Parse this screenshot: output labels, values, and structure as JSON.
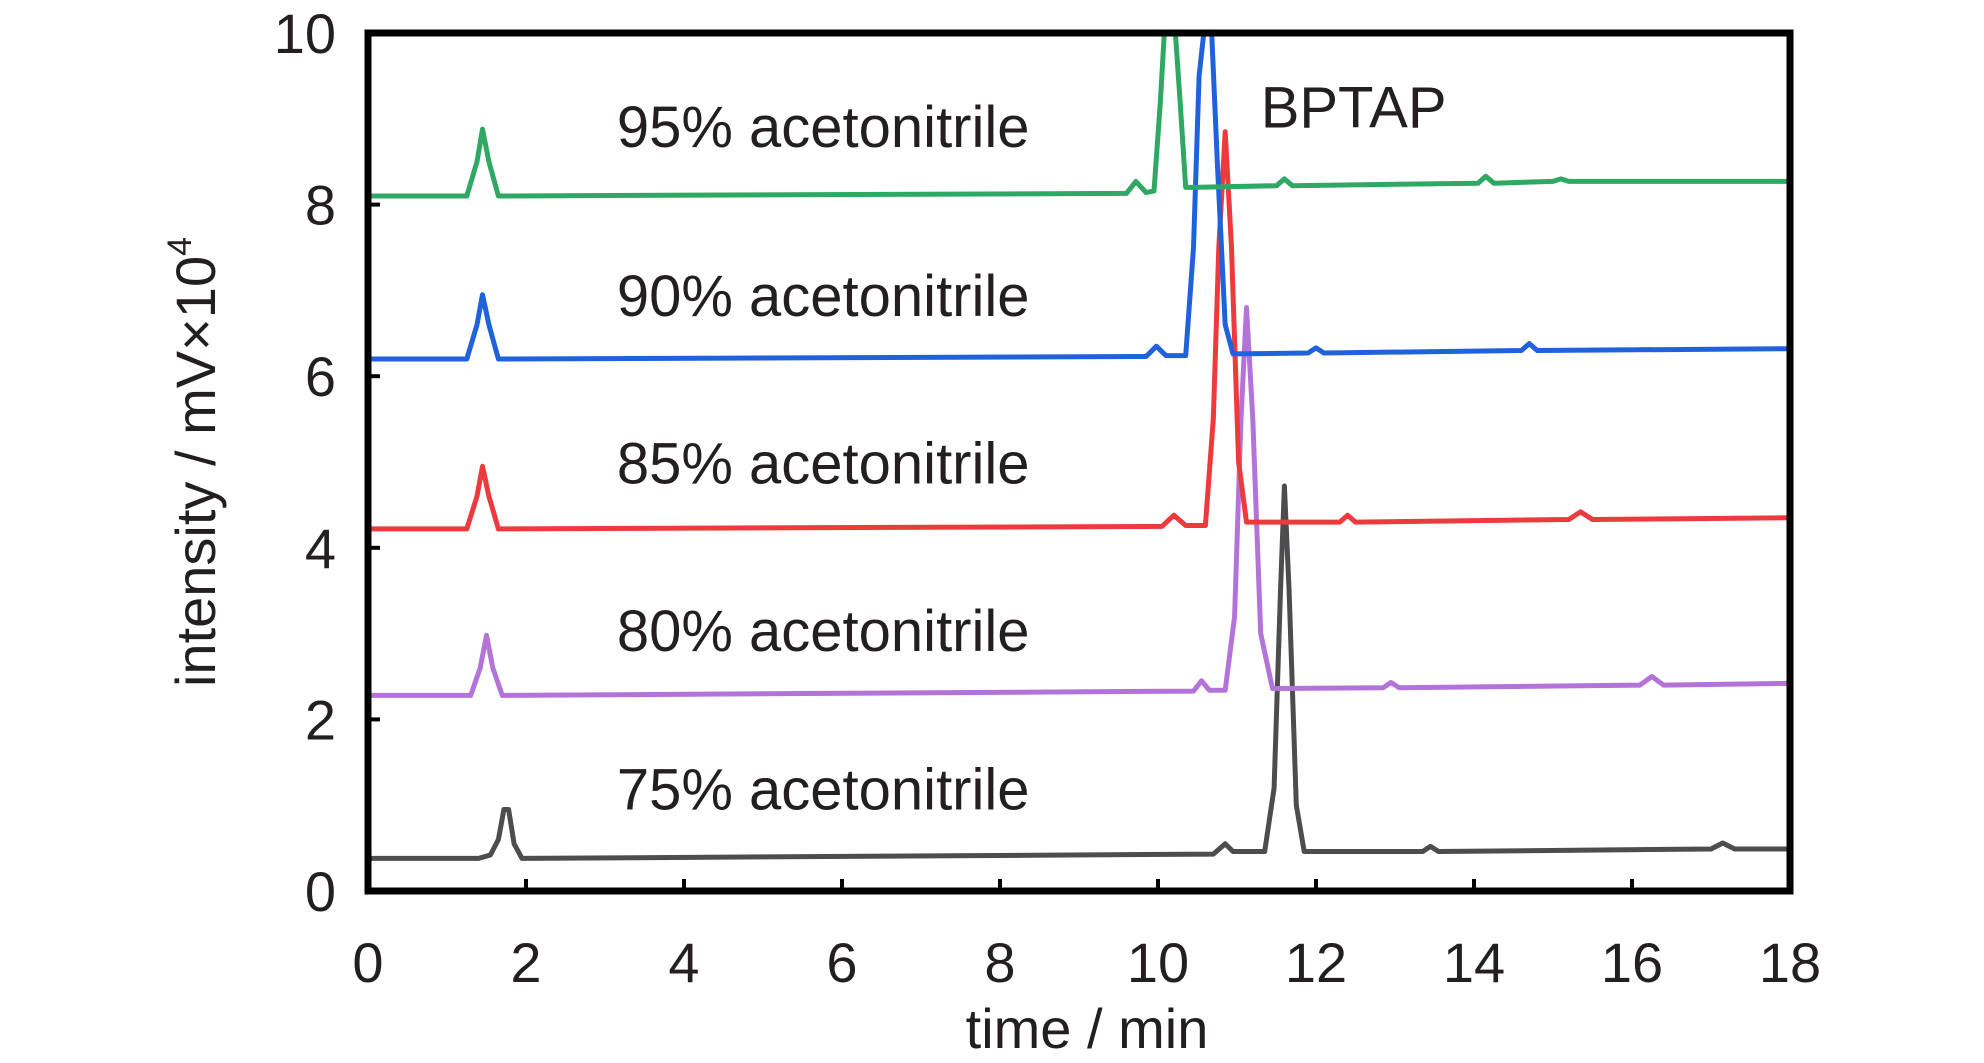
{
  "chart_data": {
    "type": "line",
    "title": "",
    "xlabel": "time / min",
    "ylabel_prefix": "intensity / mV×10",
    "ylabel_exponent": "4",
    "xlim": [
      0,
      18
    ],
    "ylim": [
      0,
      10
    ],
    "xticks": [
      0,
      2,
      4,
      6,
      8,
      10,
      12,
      14,
      16,
      18
    ],
    "yticks": [
      0,
      2,
      4,
      6,
      8,
      10
    ],
    "grid": false,
    "legend": "none",
    "annotations": [
      {
        "name": "bptap",
        "text": "BPTAP",
        "x": 11.3,
        "y": 8.9
      }
    ],
    "series": [
      {
        "name": "75% acetonitrile",
        "label_x": 3.15,
        "label_y": 0.95,
        "color": "#4d4d4f",
        "points": [
          [
            0,
            0.38
          ],
          [
            1.4,
            0.38
          ],
          [
            1.55,
            0.42
          ],
          [
            1.65,
            0.6
          ],
          [
            1.72,
            0.95
          ],
          [
            1.78,
            0.95
          ],
          [
            1.85,
            0.55
          ],
          [
            1.95,
            0.38
          ],
          [
            10.7,
            0.43
          ],
          [
            10.85,
            0.55
          ],
          [
            10.95,
            0.46
          ],
          [
            11.35,
            0.46
          ],
          [
            11.47,
            1.2
          ],
          [
            11.55,
            3.5
          ],
          [
            11.6,
            4.72
          ],
          [
            11.66,
            3.5
          ],
          [
            11.75,
            1.0
          ],
          [
            11.85,
            0.46
          ],
          [
            13.35,
            0.46
          ],
          [
            13.45,
            0.52
          ],
          [
            13.55,
            0.46
          ],
          [
            17.0,
            0.49
          ],
          [
            17.15,
            0.56
          ],
          [
            17.3,
            0.49
          ],
          [
            18,
            0.49
          ]
        ]
      },
      {
        "name": "80% acetonitrile",
        "label_x": 3.15,
        "label_y": 2.8,
        "color": "#b473d9",
        "points": [
          [
            0,
            2.28
          ],
          [
            1.3,
            2.28
          ],
          [
            1.42,
            2.6
          ],
          [
            1.5,
            2.98
          ],
          [
            1.58,
            2.6
          ],
          [
            1.7,
            2.28
          ],
          [
            10.45,
            2.33
          ],
          [
            10.55,
            2.45
          ],
          [
            10.65,
            2.34
          ],
          [
            10.85,
            2.34
          ],
          [
            10.97,
            3.2
          ],
          [
            11.05,
            5.5
          ],
          [
            11.12,
            6.8
          ],
          [
            11.2,
            5.5
          ],
          [
            11.3,
            3.0
          ],
          [
            11.45,
            2.36
          ],
          [
            12.85,
            2.37
          ],
          [
            12.95,
            2.43
          ],
          [
            13.05,
            2.37
          ],
          [
            16.1,
            2.4
          ],
          [
            16.25,
            2.5
          ],
          [
            16.4,
            2.4
          ],
          [
            18,
            2.42
          ]
        ]
      },
      {
        "name": "85% acetonitrile",
        "label_x": 3.15,
        "label_y": 4.75,
        "color": "#ed3b3d",
        "points": [
          [
            0,
            4.22
          ],
          [
            1.25,
            4.22
          ],
          [
            1.38,
            4.6
          ],
          [
            1.45,
            4.95
          ],
          [
            1.53,
            4.6
          ],
          [
            1.65,
            4.22
          ],
          [
            10.05,
            4.25
          ],
          [
            10.2,
            4.38
          ],
          [
            10.35,
            4.26
          ],
          [
            10.6,
            4.26
          ],
          [
            10.7,
            5.5
          ],
          [
            10.77,
            7.5
          ],
          [
            10.85,
            8.85
          ],
          [
            10.93,
            7.5
          ],
          [
            11.02,
            5.0
          ],
          [
            11.12,
            4.3
          ],
          [
            12.3,
            4.3
          ],
          [
            12.4,
            4.38
          ],
          [
            12.5,
            4.3
          ],
          [
            15.2,
            4.33
          ],
          [
            15.35,
            4.42
          ],
          [
            15.5,
            4.33
          ],
          [
            18,
            4.35
          ]
        ]
      },
      {
        "name": "90% acetonitrile",
        "label_x": 3.15,
        "label_y": 6.7,
        "color": "#2062db",
        "points": [
          [
            0,
            6.2
          ],
          [
            1.25,
            6.2
          ],
          [
            1.38,
            6.6
          ],
          [
            1.45,
            6.95
          ],
          [
            1.53,
            6.6
          ],
          [
            1.65,
            6.2
          ],
          [
            9.85,
            6.23
          ],
          [
            9.98,
            6.35
          ],
          [
            10.1,
            6.24
          ],
          [
            10.35,
            6.24
          ],
          [
            10.45,
            7.5
          ],
          [
            10.52,
            9.5
          ],
          [
            10.58,
            10
          ],
          [
            10.68,
            10
          ],
          [
            10.75,
            8.5
          ],
          [
            10.85,
            6.6
          ],
          [
            10.95,
            6.26
          ],
          [
            11.9,
            6.27
          ],
          [
            12.0,
            6.33
          ],
          [
            12.1,
            6.27
          ],
          [
            14.6,
            6.3
          ],
          [
            14.7,
            6.38
          ],
          [
            14.8,
            6.3
          ],
          [
            18,
            6.32
          ]
        ]
      },
      {
        "name": "95% acetonitrile",
        "label_x": 3.15,
        "label_y": 8.67,
        "color": "#2fa864",
        "points": [
          [
            0,
            8.1
          ],
          [
            1.25,
            8.1
          ],
          [
            1.38,
            8.5
          ],
          [
            1.45,
            8.88
          ],
          [
            1.53,
            8.5
          ],
          [
            1.65,
            8.1
          ],
          [
            9.6,
            8.13
          ],
          [
            9.72,
            8.27
          ],
          [
            9.85,
            8.14
          ],
          [
            9.95,
            8.16
          ],
          [
            10.03,
            9.2
          ],
          [
            10.08,
            10
          ],
          [
            10.22,
            10
          ],
          [
            10.28,
            9.2
          ],
          [
            10.35,
            8.2
          ],
          [
            10.45,
            8.2
          ],
          [
            11.5,
            8.22
          ],
          [
            11.6,
            8.3
          ],
          [
            11.7,
            8.22
          ],
          [
            14.05,
            8.25
          ],
          [
            14.15,
            8.33
          ],
          [
            14.25,
            8.25
          ],
          [
            15.0,
            8.27
          ],
          [
            15.1,
            8.3
          ],
          [
            15.2,
            8.27
          ],
          [
            18,
            8.27
          ]
        ]
      }
    ]
  }
}
